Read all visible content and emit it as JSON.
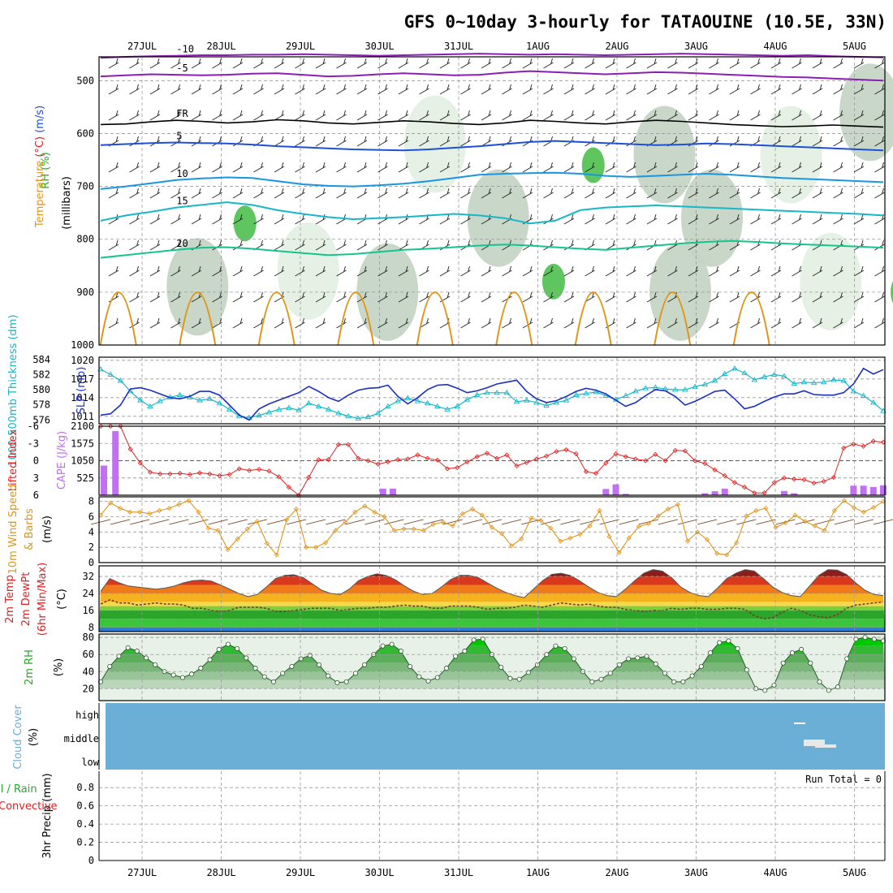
{
  "title": "GFS 0~10day 3-hourly for TATAOUINE (10.5E, 33N)",
  "dates": [
    "27JUL",
    "28JUL",
    "29JUL",
    "30JUL",
    "31JUL",
    "1AUG",
    "2AUG",
    "3AUG",
    "4AUG",
    "5AUG"
  ],
  "colors": {
    "purple": "#8a1fb0",
    "blue": "#1f4fd6",
    "lightblue": "#1a96e0",
    "cyan": "#16b7c9",
    "teal": "#14c48f",
    "orange": "#e0951a",
    "darkblue": "#1a2fc0",
    "red": "#e02020",
    "cape": "#c070f0",
    "cloud": "#6baed6",
    "green": "#22aa22",
    "rh": "#00cc00"
  },
  "chart_data": [
    {
      "panel": "upper-air",
      "type": "heatmap",
      "labels": {
        "wind": "Wind (m/s)",
        "temp": "Temperature (°C)",
        "rh": "RH (%)",
        "units": "(millibars)"
      },
      "yticks": [
        500,
        600,
        700,
        800,
        900,
        1000
      ],
      "contours": [
        {
          "label": "-10",
          "color": "purple",
          "mb": [
            457,
            455,
            454,
            453,
            452,
            452,
            451,
            451,
            450,
            451,
            452,
            453,
            452,
            451,
            450,
            449,
            450,
            451,
            450,
            451,
            452,
            451,
            450,
            449,
            450,
            451,
            452,
            453,
            452,
            454,
            455,
            456
          ]
        },
        {
          "label": "-5",
          "color": "purple",
          "mb": [
            492,
            490,
            488,
            489,
            490,
            489,
            487,
            486,
            489,
            492,
            491,
            488,
            486,
            488,
            490,
            489,
            485,
            482,
            484,
            486,
            488,
            486,
            484,
            485,
            487,
            489,
            491,
            493,
            494,
            496,
            498,
            500
          ]
        },
        {
          "label": "FR",
          "color": "black",
          "mb": [
            583,
            582,
            578,
            575,
            577,
            580,
            578,
            574,
            576,
            580,
            582,
            579,
            576,
            578,
            581,
            583,
            580,
            575,
            577,
            580,
            582,
            578,
            575,
            577,
            580,
            583,
            585,
            587,
            586,
            584,
            586,
            588
          ]
        },
        {
          "label": "5",
          "color": "blue",
          "mb": [
            622,
            620,
            618,
            617,
            618,
            619,
            621,
            624,
            626,
            628,
            630,
            631,
            632,
            630,
            627,
            624,
            620,
            616,
            614,
            616,
            618,
            620,
            622,
            621,
            619,
            620,
            622,
            624,
            626,
            628,
            630,
            632
          ]
        },
        {
          "label": "10",
          "color": "lightblue",
          "mb": [
            705,
            700,
            694,
            688,
            685,
            683,
            684,
            690,
            696,
            699,
            700,
            698,
            695,
            690,
            684,
            678,
            676,
            675,
            674,
            676,
            680,
            682,
            680,
            678,
            676,
            678,
            681,
            684,
            686,
            688,
            690,
            692
          ]
        },
        {
          "label": "15",
          "color": "cyan",
          "mb": [
            765,
            755,
            748,
            740,
            735,
            730,
            735,
            745,
            752,
            758,
            762,
            760,
            758,
            755,
            752,
            755,
            760,
            770,
            765,
            745,
            740,
            738,
            736,
            738,
            740,
            742,
            744,
            746,
            748,
            750,
            752,
            755
          ]
        },
        {
          "label": "20",
          "color": "teal",
          "mb": [
            835,
            830,
            825,
            820,
            816,
            815,
            818,
            822,
            826,
            830,
            828,
            824,
            820,
            818,
            815,
            812,
            810,
            812,
            815,
            818,
            820,
            816,
            812,
            808,
            805,
            803,
            805,
            808,
            810,
            812,
            814,
            816
          ]
        }
      ],
      "rh_blobs": [
        {
          "t": 0.7,
          "mb": 890,
          "rh": 50
        },
        {
          "t": 2.1,
          "mb": 860,
          "rh": 30
        },
        {
          "t": 3.1,
          "mb": 900,
          "rh": 50
        },
        {
          "t": 4.5,
          "mb": 760,
          "rh": 50
        },
        {
          "t": 5.7,
          "mb": 660,
          "rh": 70
        },
        {
          "t": 6.6,
          "mb": 640,
          "rh": 50
        },
        {
          "t": 7.2,
          "mb": 760,
          "rh": 50
        },
        {
          "t": 8.7,
          "mb": 880,
          "rh": 30
        },
        {
          "t": 9.6,
          "mb": 900,
          "rh": 70
        },
        {
          "t": 1.3,
          "mb": 770,
          "rh": 70
        },
        {
          "t": 3.7,
          "mb": 620,
          "rh": 30
        },
        {
          "t": 5.2,
          "mb": 880,
          "rh": 70
        },
        {
          "t": 6.8,
          "mb": 900,
          "rh": 50
        },
        {
          "t": 8.2,
          "mb": 640,
          "rh": 30
        },
        {
          "t": 9.2,
          "mb": 560,
          "rh": 50
        }
      ]
    },
    {
      "panel": "thickness-slp",
      "type": "line",
      "labels": {
        "left": "1000-500mb Thickness (dm)",
        "right": "SLP (mb)"
      },
      "thickness_ticks": [
        576,
        578,
        580,
        582,
        584
      ],
      "slp_ticks": [
        1011,
        1014,
        1017,
        1020
      ],
      "thickness": [
        582.7,
        582,
        581.2,
        579.8,
        578.6,
        577.8,
        578.5,
        579,
        579.3,
        579,
        578.6,
        578.8,
        578.2,
        577.4,
        576.5,
        576.3,
        576.6,
        577,
        577.4,
        577.6,
        577.3,
        578.2,
        577.8,
        577.4,
        576.9,
        576.5,
        576.2,
        576.4,
        576.9,
        577.8,
        578.5,
        578.9,
        578.5,
        578.2,
        577.8,
        577.4,
        577.8,
        578.7,
        579.3,
        579.6,
        579.6,
        579.6,
        578.4,
        578.6,
        578.3,
        577.9,
        578.3,
        578.6,
        579.3,
        579.5,
        579.7,
        579.2,
        578.7,
        579.2,
        579.8,
        580.2,
        580.3,
        580.1,
        580,
        580,
        580.4,
        580.7,
        581.2,
        582.1,
        582.8,
        582.2,
        581.3,
        581.7,
        582,
        581.8,
        580.8,
        581,
        580.9,
        581,
        581.3,
        581.2,
        579.8,
        579.2,
        578.3,
        577.2
      ],
      "slp": [
        1011.2,
        1011.4,
        1012.8,
        1015.4,
        1015.6,
        1015.2,
        1014.6,
        1014,
        1013.8,
        1014.2,
        1015,
        1015,
        1014.4,
        1012.8,
        1011.2,
        1010.4,
        1012.2,
        1013,
        1013.6,
        1014.2,
        1014.8,
        1015.8,
        1015,
        1014,
        1013.4,
        1014.4,
        1015.2,
        1015.5,
        1015.6,
        1016,
        1014.2,
        1013,
        1014,
        1015.3,
        1016,
        1016.1,
        1015.5,
        1014.8,
        1015.1,
        1015.6,
        1016.2,
        1016.5,
        1016.8,
        1015,
        1013.8,
        1013.2,
        1013.5,
        1014.2,
        1015,
        1015.5,
        1015.2,
        1014.6,
        1013.6,
        1012.6,
        1013.2,
        1014.3,
        1015.3,
        1015.1,
        1014.2,
        1012.8,
        1013.4,
        1014.2,
        1015,
        1015.2,
        1013.8,
        1012.2,
        1012.6,
        1013.4,
        1014.1,
        1014.6,
        1014.6,
        1015.1,
        1014.5,
        1014.4,
        1014.4,
        1014.8,
        1016.2,
        1018.7,
        1017.8,
        1018.5
      ]
    },
    {
      "panel": "stability",
      "type": "bar",
      "labels": {
        "left": "Lifted Index",
        "right": "CAPE (J/kg)"
      },
      "li_ticks": [
        "-6",
        "-3",
        "0",
        "3",
        "6"
      ],
      "cape_ticks": [
        525,
        1050,
        1575,
        2100
      ],
      "lifted_index": [
        -6,
        -6,
        -6,
        -2,
        0.4,
        2,
        2.3,
        2.3,
        2.2,
        2.4,
        2.1,
        2.3,
        2.6,
        2.4,
        1.4,
        1.7,
        1.5,
        1.8,
        2.8,
        4.6,
        6,
        2.9,
        -0.2,
        -0.2,
        -2.8,
        -2.8,
        -0.4,
        0,
        0.6,
        0.2,
        -0.2,
        -0.3,
        -1,
        -0.4,
        -0.1,
        1.4,
        1.2,
        0.2,
        -0.7,
        -1.3,
        -0.4,
        -1,
        0.9,
        0.3,
        -0.3,
        -0.8,
        -1.6,
        -1.9,
        -1.2,
        1.9,
        2.2,
        0.4,
        -1.2,
        -0.7,
        -0.3,
        0,
        -1.1,
        0,
        -1.8,
        -1.7,
        0,
        0.5,
        1.6,
        2.6,
        3.8,
        4.6,
        5.6,
        5.6,
        3.8,
        3,
        3.2,
        3.3,
        3.9,
        3.6,
        2.9,
        -2.2,
        -2.9,
        -2.5,
        -3.4,
        -3.2
      ],
      "cape": [
        900,
        1950,
        180,
        130,
        30,
        0,
        0,
        0,
        0,
        0,
        0,
        0,
        0,
        0,
        0,
        0,
        0,
        0,
        0,
        0,
        0,
        0,
        0,
        0,
        0,
        0,
        0,
        0,
        0,
        0,
        0,
        0,
        0,
        0,
        0,
        0,
        0,
        0,
        0,
        0,
        0,
        0,
        0,
        0,
        0,
        0,
        0,
        0,
        0,
        0,
        0,
        0,
        0,
        0,
        0,
        0,
        0,
        0,
        0,
        0,
        0,
        0,
        0,
        0,
        0,
        0,
        0,
        0,
        0,
        0,
        0,
        0,
        0,
        0,
        0,
        0,
        0,
        0,
        0,
        0
      ],
      "cape_bars": [
        [
          28.5,
          200
        ],
        [
          29.5,
          200
        ],
        [
          30.5,
          10
        ],
        [
          33.5,
          10
        ],
        [
          51,
          190
        ],
        [
          52,
          330
        ],
        [
          53,
          40
        ],
        [
          61,
          60
        ],
        [
          62,
          120
        ],
        [
          63,
          200
        ],
        [
          69,
          130
        ],
        [
          70,
          60
        ],
        [
          76,
          290
        ],
        [
          77,
          290
        ],
        [
          78,
          250
        ],
        [
          79,
          300
        ]
      ]
    },
    {
      "panel": "wind10m",
      "type": "line",
      "labels": {
        "left": "10m Wind Speed",
        "mid": "& Barbs",
        "units": "(m/s)"
      },
      "yticks": [
        0,
        2,
        4,
        6,
        8
      ],
      "speed": [
        6.2,
        7.8,
        7.1,
        6.6,
        6.6,
        6.4,
        6.8,
        7.1,
        7.6,
        8.1,
        6.6,
        4.5,
        4.2,
        1.7,
        3.1,
        4.4,
        5.4,
        2.5,
        1,
        5.6,
        7,
        2,
        2,
        2.6,
        4.2,
        5.3,
        6.6,
        7.4,
        6.6,
        6,
        4.2,
        4.4,
        4.4,
        4.2,
        5,
        5.3,
        4.8,
        6.4,
        7,
        6.2,
        4.6,
        3.8,
        2.2,
        3.1,
        5.8,
        5.5,
        4.5,
        2.8,
        3.2,
        3.7,
        4.8,
        6.8,
        3.4,
        1.3,
        3.2,
        4.7,
        5.1,
        6.1,
        7,
        7.6,
        2.8,
        4,
        3,
        1.2,
        1,
        2.6,
        6.1,
        6.8,
        7.1,
        4.6,
        5.2,
        6.2,
        5.4,
        4.8,
        4.2,
        6.8,
        8.1,
        7.2,
        6.6,
        7.2,
        8
      ]
    },
    {
      "panel": "temp2m",
      "type": "area",
      "labels": {
        "a": "2m Temp",
        "b": "2m DewPt",
        "c": "(6hr Min/Max)",
        "units": "(°C)"
      },
      "yticks": [
        8,
        16,
        24,
        32
      ],
      "temp": [
        25,
        31,
        29,
        27.5,
        27,
        26.5,
        26,
        26.5,
        27.5,
        29,
        30,
        30.3,
        29.8,
        28,
        26,
        24,
        22.5,
        23.5,
        27,
        31,
        32.5,
        32.8,
        31.5,
        28.5,
        25.5,
        24,
        23.5,
        26,
        30,
        32,
        33.2,
        32.5,
        30.5,
        27.5,
        25,
        23.5,
        24,
        27,
        30.5,
        32.5,
        32.5,
        31.5,
        29,
        26.5,
        24.5,
        23,
        22,
        26,
        30,
        33,
        33.5,
        32.5,
        30,
        27,
        24.5,
        23,
        22.5,
        26,
        30,
        33.5,
        35.2,
        34.5,
        31.5,
        27,
        24.5,
        23,
        22.5,
        26.5,
        31,
        33.5,
        35.2,
        34.5,
        31,
        27,
        24.5,
        23,
        22.5,
        27.5,
        32.5,
        35.2,
        35,
        33,
        29,
        25.5,
        23.5,
        23
      ],
      "dewpt": [
        19,
        21,
        19.5,
        19.5,
        18.5,
        19,
        19.5,
        19,
        19,
        18.5,
        17,
        17,
        16,
        15.5,
        16,
        17.5,
        17.5,
        17.5,
        17,
        15.5,
        15.5,
        16,
        16.5,
        17,
        17,
        17,
        16,
        16.5,
        17,
        17,
        17.5,
        17.5,
        18,
        18.5,
        18,
        18,
        17,
        17,
        18,
        18,
        18,
        17.5,
        16.5,
        17,
        17,
        17.5,
        18.5,
        18,
        17.5,
        18.5,
        19.5,
        19,
        18.5,
        19,
        18,
        17.5,
        17.5,
        16.5,
        16,
        15.5,
        16,
        16,
        17,
        16.5,
        17,
        17,
        16.5,
        16.5,
        17,
        17,
        16.5,
        13.5,
        12,
        12.5,
        15,
        17,
        16,
        14,
        13,
        12.5,
        14,
        17,
        18.5,
        19,
        19.5,
        20
      ]
    },
    {
      "panel": "rh2m",
      "type": "area",
      "labels": {
        "name": "2m RH",
        "units": "(%)"
      },
      "yticks": [
        20,
        40,
        60,
        80
      ],
      "rh": [
        28,
        46,
        58,
        68,
        64,
        56,
        48,
        40,
        36,
        33,
        37,
        44,
        54,
        66,
        72,
        67,
        56,
        44,
        34,
        28,
        38,
        46,
        55,
        59,
        48,
        35,
        27,
        28,
        38,
        48,
        60,
        70,
        72,
        64,
        46,
        34,
        29,
        33,
        44,
        58,
        64,
        77,
        78,
        60,
        45,
        32,
        31,
        39,
        48,
        60,
        70,
        67,
        55,
        40,
        28,
        31,
        38,
        48,
        55,
        56,
        58,
        49,
        38,
        28,
        28,
        35,
        46,
        62,
        74,
        76,
        67,
        42,
        20,
        18,
        24,
        50,
        62,
        66,
        50,
        28,
        18,
        22,
        55,
        78,
        80,
        78,
        76
      ],
      "fill_thresholds": [
        70,
        60,
        50,
        40,
        30,
        20
      ]
    },
    {
      "panel": "cloud",
      "type": "heatmap",
      "labels": {
        "name": "Cloud Cover",
        "units": "(%)"
      },
      "levels": [
        "high",
        "middle",
        "low"
      ],
      "gaps": [
        {
          "t": 8.7,
          "level": "high",
          "w": 0.15
        },
        {
          "t": 8.9,
          "level": "middle",
          "w": 0.35
        }
      ]
    },
    {
      "panel": "precip",
      "type": "bar",
      "labels": {
        "name": "3hr Precip (mm)",
        "total": "Total / Rain",
        "conv": "Convective"
      },
      "yticks": [
        "0",
        "0.2",
        "0.4",
        "0.6",
        "0.8"
      ],
      "run_total": "Run Total = 0",
      "values": [
        0
      ]
    }
  ]
}
